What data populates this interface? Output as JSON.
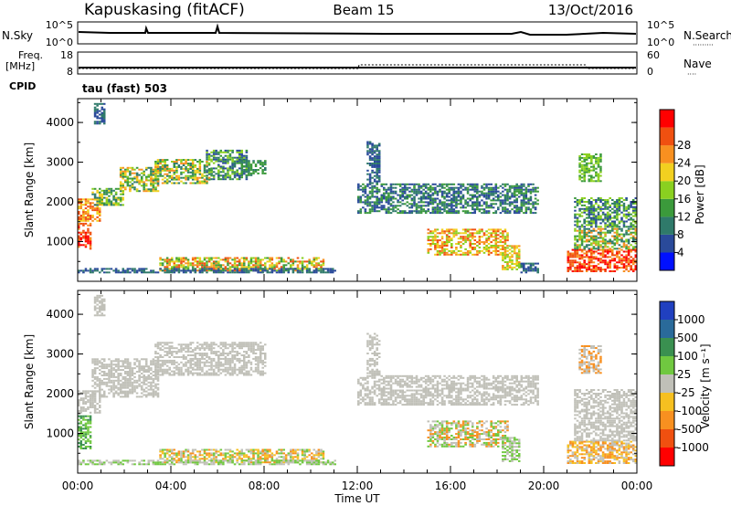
{
  "header": {
    "station": "Kapuskasing (fitACF)",
    "beam": "Beam 15",
    "date": "13/Oct/2016"
  },
  "aux_panels": {
    "nsky": {
      "left_label": "N.Sky",
      "left_ticks": [
        "10^5",
        "10^0"
      ],
      "right_label": "N.Search",
      "right_ticks": [
        "10^5",
        "10^0"
      ],
      "right_legend": "·········"
    },
    "freq": {
      "left_label_1": "Freq.",
      "left_label_2": "[MHz]",
      "left_ticks": [
        "18",
        "8"
      ],
      "right_label": "Nave",
      "right_ticks": [
        "60",
        "0"
      ],
      "right_legend": "····",
      "cpid_label": "CPID",
      "cpid_text": "tau (fast) 503"
    }
  },
  "colors": {
    "power": [
      "#0010ff",
      "#2a4a9a",
      "#2f7a6a",
      "#3b9a3b",
      "#8ad020",
      "#f2d020",
      "#f89020",
      "#f05010",
      "#ff0000"
    ],
    "velocity": [
      "#2040c0",
      "#2a6a9a",
      "#3a9050",
      "#70c840",
      "#c0c0b8",
      "#f6c020",
      "#f89020",
      "#f05010",
      "#ff0000"
    ]
  },
  "chart_data": [
    {
      "type": "heatmap",
      "panel": "power",
      "ylabel": "Slant Range [km]",
      "y_ticks": [
        "1000",
        "2000",
        "3000",
        "4000"
      ],
      "ylim": [
        0,
        4600
      ],
      "xlabel": "Time UT",
      "x_ticks": [
        "00:00",
        "04:00",
        "08:00",
        "12:00",
        "16:00",
        "20:00",
        "00:00"
      ],
      "xlim": [
        0,
        24
      ],
      "colorbar_title": "Power [dB]",
      "colorbar_ticks": [
        "4",
        "8",
        "12",
        "16",
        "20",
        "24",
        "28"
      ],
      "patches": [
        {
          "t": [
            0.0,
            0.9
          ],
          "r": [
            1500,
            2050
          ],
          "levels": [
            5,
            6,
            7
          ]
        },
        {
          "t": [
            0.0,
            0.6
          ],
          "r": [
            800,
            1450
          ],
          "levels": [
            6,
            7,
            8
          ]
        },
        {
          "t": [
            0.6,
            2.0
          ],
          "r": [
            1900,
            2350
          ],
          "levels": [
            2,
            3,
            4,
            5
          ]
        },
        {
          "t": [
            1.8,
            3.5
          ],
          "r": [
            2250,
            2850
          ],
          "levels": [
            2,
            3,
            4,
            5,
            6
          ]
        },
        {
          "t": [
            3.3,
            5.6
          ],
          "r": [
            2450,
            3050
          ],
          "levels": [
            2,
            3,
            4,
            5,
            6
          ]
        },
        {
          "t": [
            5.5,
            7.2
          ],
          "r": [
            2550,
            3300
          ],
          "levels": [
            1,
            2,
            3,
            4
          ]
        },
        {
          "t": [
            7.0,
            8.0
          ],
          "r": [
            2650,
            3050
          ],
          "levels": [
            2,
            3
          ]
        },
        {
          "t": [
            0.7,
            1.2
          ],
          "r": [
            3950,
            4450
          ],
          "levels": [
            1,
            2
          ]
        },
        {
          "t": [
            3.5,
            10.5
          ],
          "r": [
            250,
            600
          ],
          "levels": [
            3,
            4,
            5,
            6,
            7
          ]
        },
        {
          "t": [
            0.0,
            11.0
          ],
          "r": [
            200,
            330
          ],
          "levels": [
            1,
            2
          ]
        },
        {
          "t": [
            12.0,
            19.8
          ],
          "r": [
            1700,
            2450
          ],
          "levels": [
            1,
            2,
            3
          ]
        },
        {
          "t": [
            12.4,
            12.9
          ],
          "r": [
            2450,
            3500
          ],
          "levels": [
            1,
            2
          ]
        },
        {
          "t": [
            15.0,
            18.5
          ],
          "r": [
            650,
            1300
          ],
          "levels": [
            4,
            5,
            6,
            7
          ]
        },
        {
          "t": [
            18.2,
            19.0
          ],
          "r": [
            280,
            900
          ],
          "levels": [
            4,
            5,
            6
          ]
        },
        {
          "t": [
            19.0,
            19.8
          ],
          "r": [
            200,
            450
          ],
          "levels": [
            1,
            2
          ]
        },
        {
          "t": [
            21.0,
            24.0
          ],
          "r": [
            230,
            800
          ],
          "levels": [
            6,
            7,
            8
          ]
        },
        {
          "t": [
            21.3,
            24.0
          ],
          "r": [
            800,
            1300
          ],
          "levels": [
            2,
            3,
            4,
            6
          ]
        },
        {
          "t": [
            21.3,
            24.0
          ],
          "r": [
            1350,
            2100
          ],
          "levels": [
            1,
            2,
            3,
            4
          ]
        },
        {
          "t": [
            21.5,
            22.5
          ],
          "r": [
            2500,
            3200
          ],
          "levels": [
            3,
            4
          ]
        }
      ]
    },
    {
      "type": "heatmap",
      "panel": "velocity",
      "ylabel": "Slant Range [km]",
      "y_ticks": [
        "1000",
        "2000",
        "3000",
        "4000"
      ],
      "ylim": [
        0,
        4600
      ],
      "xlabel": "Time UT",
      "x_ticks": [
        "00:00",
        "04:00",
        "08:00",
        "12:00",
        "16:00",
        "20:00",
        "00:00"
      ],
      "xlim": [
        0,
        24
      ],
      "colorbar_title": "Velocity [m s⁻¹]",
      "colorbar_ticks": [
        "1000",
        "500",
        "100",
        "25",
        "-25",
        "-100",
        "-500",
        "-1000"
      ],
      "patches": [
        {
          "t": [
            0.0,
            0.9
          ],
          "r": [
            1500,
            2050
          ],
          "levels": [
            4
          ]
        },
        {
          "t": [
            0.0,
            0.6
          ],
          "r": [
            600,
            1450
          ],
          "levels": [
            3,
            2
          ]
        },
        {
          "t": [
            0.6,
            3.5
          ],
          "r": [
            1900,
            2850
          ],
          "levels": [
            4
          ]
        },
        {
          "t": [
            3.3,
            8.0
          ],
          "r": [
            2450,
            3300
          ],
          "levels": [
            4
          ]
        },
        {
          "t": [
            0.7,
            1.2
          ],
          "r": [
            3950,
            4450
          ],
          "levels": [
            4
          ]
        },
        {
          "t": [
            3.5,
            10.5
          ],
          "r": [
            250,
            600
          ],
          "levels": [
            5,
            6,
            4,
            3
          ]
        },
        {
          "t": [
            0.0,
            11.0
          ],
          "r": [
            200,
            330
          ],
          "levels": [
            4,
            3
          ]
        },
        {
          "t": [
            12.0,
            19.8
          ],
          "r": [
            1700,
            2450
          ],
          "levels": [
            4
          ]
        },
        {
          "t": [
            12.4,
            12.9
          ],
          "r": [
            2450,
            3500
          ],
          "levels": [
            4
          ]
        },
        {
          "t": [
            15.0,
            18.5
          ],
          "r": [
            650,
            1300
          ],
          "levels": [
            4,
            6,
            3
          ]
        },
        {
          "t": [
            18.2,
            19.0
          ],
          "r": [
            280,
            900
          ],
          "levels": [
            3,
            4
          ]
        },
        {
          "t": [
            21.0,
            24.0
          ],
          "r": [
            230,
            800
          ],
          "levels": [
            5,
            6,
            4
          ]
        },
        {
          "t": [
            21.3,
            24.0
          ],
          "r": [
            800,
            1300
          ],
          "levels": [
            4
          ]
        },
        {
          "t": [
            21.3,
            24.0
          ],
          "r": [
            1350,
            2100
          ],
          "levels": [
            4
          ]
        },
        {
          "t": [
            21.5,
            22.5
          ],
          "r": [
            2500,
            3200
          ],
          "levels": [
            6,
            4
          ]
        }
      ]
    }
  ]
}
